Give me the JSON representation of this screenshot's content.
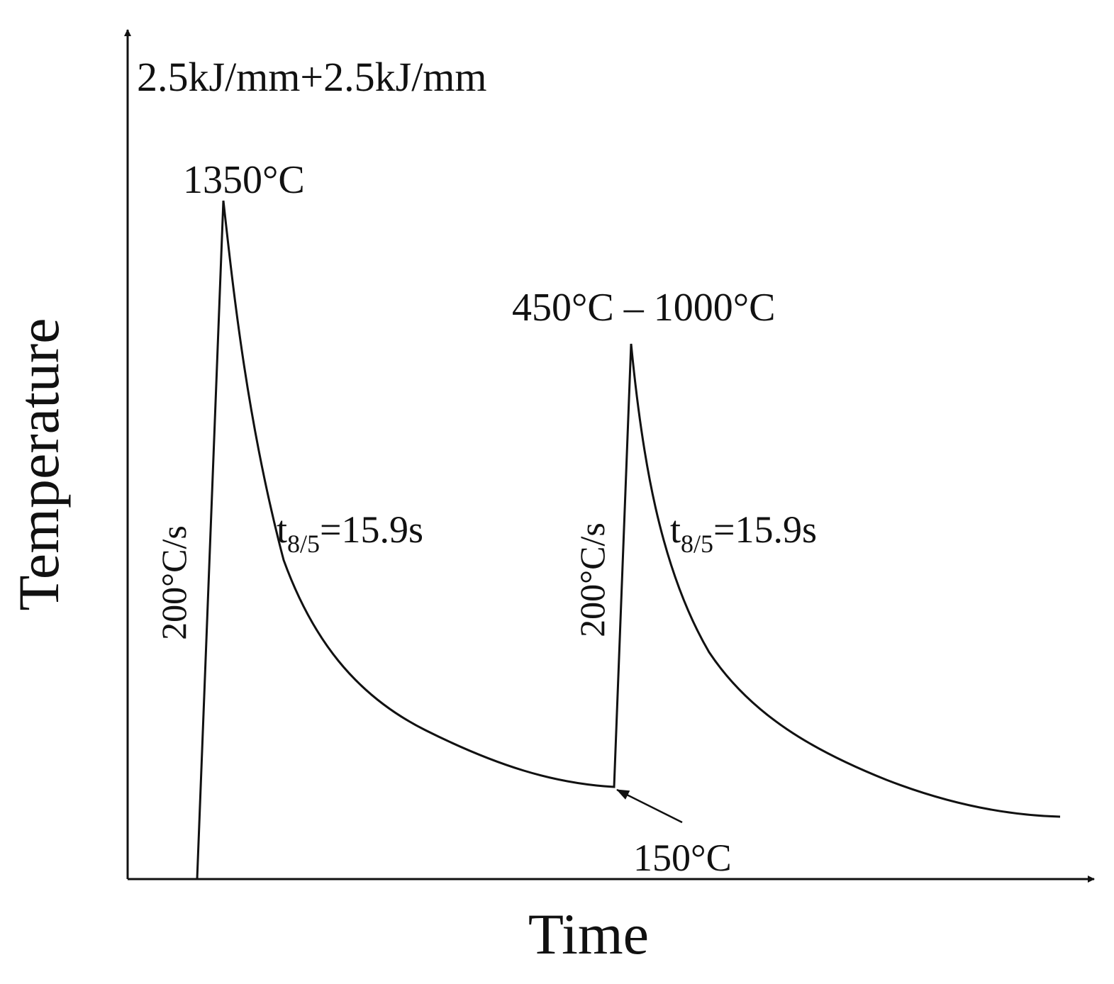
{
  "title": "2.5kJ/mm+2.5kJ/mm",
  "axes": {
    "x_label": "Time",
    "y_label": "Temperature"
  },
  "annotations": {
    "peak1": "1350°C",
    "peak2": "450°C – 1000°C",
    "heating_rate1": "200°C/s",
    "heating_rate2": "200°C/s",
    "cooling1": {
      "symbol": "t",
      "subscript": "8/5",
      "text": "=15.9s"
    },
    "cooling2": {
      "symbol": "t",
      "subscript": "8/5",
      "text": "=15.9s"
    },
    "interpass": "150°C"
  }
}
